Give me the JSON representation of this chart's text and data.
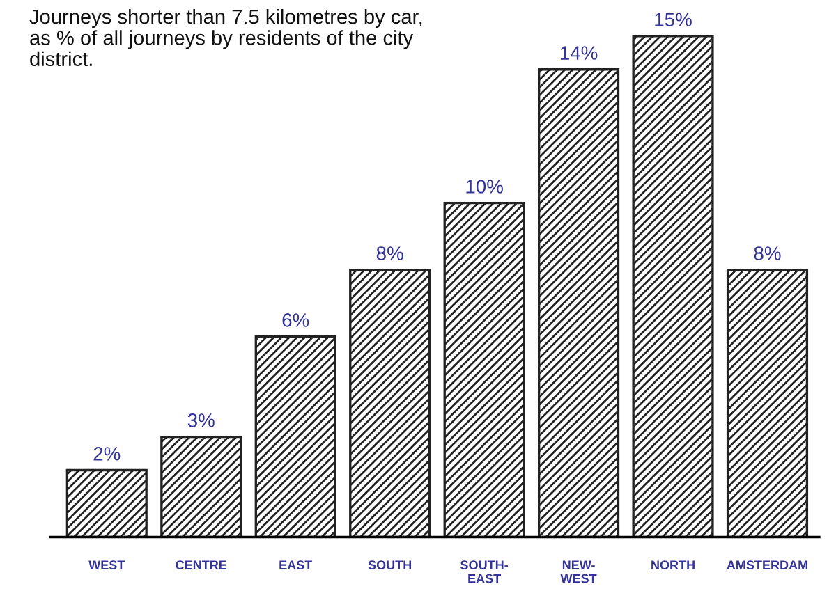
{
  "chart_data": {
    "type": "bar",
    "title": "Journeys shorter than 7.5 kilometres by car,\nas % of all journeys by residents of the city\ndistrict.",
    "categories": [
      "WEST",
      "CENTRE",
      "EAST",
      "SOUTH",
      "SOUTH-\nEAST",
      "NEW-\nWEST",
      "NORTH",
      "AMSTERDAM"
    ],
    "values": [
      2,
      3,
      6,
      8,
      10,
      14,
      15,
      8
    ],
    "value_labels": [
      "2%",
      "3%",
      "6%",
      "8%",
      "10%",
      "14%",
      "15%",
      "8%"
    ],
    "color": "#222222",
    "grid": false
  }
}
